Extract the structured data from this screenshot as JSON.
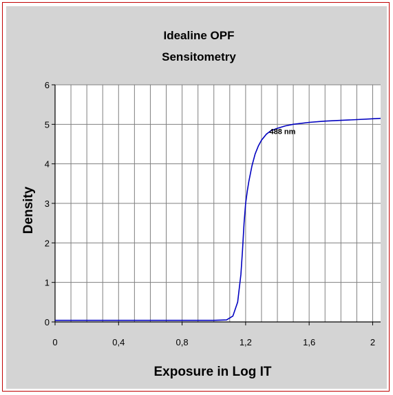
{
  "chart_data": {
    "type": "line",
    "title": [
      "Idealine OPF",
      "Sensitometry"
    ],
    "xlabel": "Exposure in Log IT",
    "ylabel": "Density",
    "xlim": [
      0,
      2.05
    ],
    "ylim": [
      0,
      6
    ],
    "x_ticks": [
      0,
      0.4,
      0.8,
      1.2,
      1.6,
      2
    ],
    "x_tick_labels": [
      "0",
      "0,4",
      "0,8",
      "1,2",
      "1,6",
      "2"
    ],
    "y_ticks": [
      0,
      1,
      2,
      3,
      4,
      5,
      6
    ],
    "y_tick_labels": [
      "0",
      "1",
      "2",
      "3",
      "4",
      "5",
      "6"
    ],
    "grid": true,
    "series": [
      {
        "color": "#0000c0",
        "x": [
          0,
          0.2,
          0.4,
          0.6,
          0.8,
          1.0,
          1.08,
          1.12,
          1.15,
          1.17,
          1.18,
          1.19,
          1.2,
          1.21,
          1.22,
          1.24,
          1.26,
          1.28,
          1.3,
          1.33,
          1.36,
          1.4,
          1.45,
          1.5,
          1.6,
          1.7,
          1.8,
          1.9,
          2.0,
          2.05
        ],
        "y": [
          0.04,
          0.04,
          0.04,
          0.04,
          0.04,
          0.04,
          0.05,
          0.15,
          0.5,
          1.2,
          1.8,
          2.5,
          3.0,
          3.3,
          3.55,
          3.95,
          4.25,
          4.45,
          4.6,
          4.75,
          4.84,
          4.9,
          4.96,
          5.0,
          5.05,
          5.08,
          5.1,
          5.12,
          5.14,
          5.15
        ]
      }
    ],
    "annotations": [
      {
        "text": "488 nm",
        "x": 1.35,
        "y": 4.75
      }
    ]
  }
}
